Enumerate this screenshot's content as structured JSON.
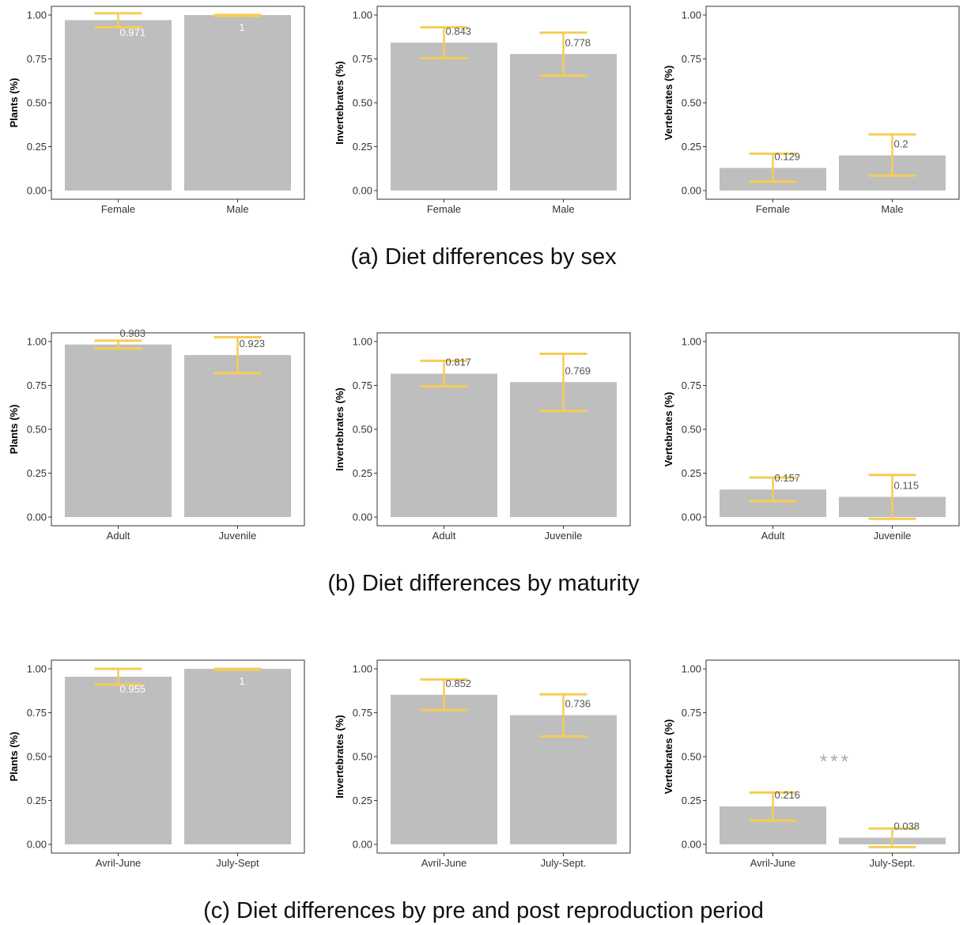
{
  "colors": {
    "bar": "#bebebe",
    "error_bar": "#f5cd55",
    "panel_border": "#333333",
    "label_dark": "#555555",
    "label_light": "#ffffff",
    "significance": "#aaaaaa"
  },
  "rows": [
    {
      "caption": "(a) Diet differences by sex",
      "charts": [
        {
          "ylabel": "Plants (%)",
          "categories": [
            "Female",
            "Male"
          ],
          "values": [
            0.971,
            1
          ],
          "labels": [
            "0.971",
            "1"
          ],
          "err_lo": [
            0.93,
            0.995
          ],
          "err_hi": [
            1.01,
            1.0
          ],
          "label_light": true
        },
        {
          "ylabel": "Invertebrates (%)",
          "categories": [
            "Female",
            "Male"
          ],
          "values": [
            0.843,
            0.778
          ],
          "labels": [
            "0.843",
            "0.778"
          ],
          "err_lo": [
            0.755,
            0.655
          ],
          "err_hi": [
            0.93,
            0.9
          ],
          "label_light": false
        },
        {
          "ylabel": "Vertebrates (%)",
          "categories": [
            "Female",
            "Male"
          ],
          "values": [
            0.129,
            0.2
          ],
          "labels": [
            "0.129",
            "0.2"
          ],
          "err_lo": [
            0.05,
            0.085
          ],
          "err_hi": [
            0.21,
            0.32
          ],
          "label_light": false
        }
      ]
    },
    {
      "caption": "(b) Diet differences by maturity",
      "charts": [
        {
          "ylabel": "Plants (%)",
          "categories": [
            "Adult",
            "Juvenile"
          ],
          "values": [
            0.983,
            0.923
          ],
          "labels": [
            "0.983",
            "0.923"
          ],
          "err_lo": [
            0.96,
            0.82
          ],
          "err_hi": [
            1.005,
            1.025
          ],
          "label_light": false
        },
        {
          "ylabel": "Invertebrates (%)",
          "categories": [
            "Adult",
            "Juvenile"
          ],
          "values": [
            0.817,
            0.769
          ],
          "labels": [
            "0.817",
            "0.769"
          ],
          "err_lo": [
            0.745,
            0.605
          ],
          "err_hi": [
            0.89,
            0.93
          ],
          "label_light": false
        },
        {
          "ylabel": "Vertebrates (%)",
          "categories": [
            "Adult",
            "Juvenile"
          ],
          "values": [
            0.157,
            0.115
          ],
          "labels": [
            "0.157",
            "0.115"
          ],
          "err_lo": [
            0.09,
            -0.01
          ],
          "err_hi": [
            0.225,
            0.24
          ],
          "label_light": false
        }
      ]
    },
    {
      "caption": "(c) Diet differences by pre and post reproduction period",
      "charts": [
        {
          "ylabel": "Plants (%)",
          "categories": [
            "Avril-June",
            "July-Sept"
          ],
          "values": [
            0.955,
            1
          ],
          "labels": [
            "0.955",
            "1"
          ],
          "err_lo": [
            0.91,
            0.995
          ],
          "err_hi": [
            1.0,
            1.0
          ],
          "label_light": true
        },
        {
          "ylabel": "Invertebrates (%)",
          "categories": [
            "Avril-June",
            "July-Sept."
          ],
          "values": [
            0.852,
            0.736
          ],
          "labels": [
            "0.852",
            "0.736"
          ],
          "err_lo": [
            0.765,
            0.615
          ],
          "err_hi": [
            0.94,
            0.855
          ],
          "label_light": false
        },
        {
          "ylabel": "Vertebrates (%)",
          "categories": [
            "Avril-June",
            "July-Sept."
          ],
          "values": [
            0.216,
            0.038
          ],
          "labels": [
            "0.216",
            "0.038"
          ],
          "err_lo": [
            0.135,
            -0.015
          ],
          "err_hi": [
            0.295,
            0.09
          ],
          "label_light": false,
          "annotation": "***"
        }
      ]
    }
  ],
  "chart_data": [
    {
      "type": "bar",
      "title": "(a) Diet differences by sex",
      "ylabel": "Plants (%)",
      "categories": [
        "Female",
        "Male"
      ],
      "values": [
        0.971,
        1
      ],
      "ylim": [
        0,
        1
      ],
      "yticks": [
        "0.00",
        "0.25",
        "0.50",
        "0.75",
        "1.00"
      ],
      "grid": false
    },
    {
      "type": "bar",
      "title": "(a) Diet differences by sex",
      "ylabel": "Invertebrates (%)",
      "categories": [
        "Female",
        "Male"
      ],
      "values": [
        0.843,
        0.778
      ],
      "ylim": [
        0,
        1
      ],
      "yticks": [
        "0.00",
        "0.25",
        "0.50",
        "0.75",
        "1.00"
      ],
      "grid": false
    },
    {
      "type": "bar",
      "title": "(a) Diet differences by sex",
      "ylabel": "Vertebrates (%)",
      "categories": [
        "Female",
        "Male"
      ],
      "values": [
        0.129,
        0.2
      ],
      "ylim": [
        0,
        1
      ],
      "yticks": [
        "0.00",
        "0.25",
        "0.50",
        "0.75",
        "1.00"
      ],
      "grid": false
    },
    {
      "type": "bar",
      "title": "(b) Diet differences by maturity",
      "ylabel": "Plants (%)",
      "categories": [
        "Adult",
        "Juvenile"
      ],
      "values": [
        0.983,
        0.923
      ],
      "ylim": [
        0,
        1
      ],
      "yticks": [
        "0.00",
        "0.25",
        "0.50",
        "0.75",
        "1.00"
      ],
      "grid": false
    },
    {
      "type": "bar",
      "title": "(b) Diet differences by maturity",
      "ylabel": "Invertebrates (%)",
      "categories": [
        "Adult",
        "Juvenile"
      ],
      "values": [
        0.817,
        0.769
      ],
      "ylim": [
        0,
        1
      ],
      "yticks": [
        "0.00",
        "0.25",
        "0.50",
        "0.75",
        "1.00"
      ],
      "grid": false
    },
    {
      "type": "bar",
      "title": "(b) Diet differences by maturity",
      "ylabel": "Vertebrates (%)",
      "categories": [
        "Adult",
        "Juvenile"
      ],
      "values": [
        0.157,
        0.115
      ],
      "ylim": [
        0,
        1
      ],
      "yticks": [
        "0.00",
        "0.25",
        "0.50",
        "0.75",
        "1.00"
      ],
      "grid": false
    },
    {
      "type": "bar",
      "title": "(c) Diet differences by pre and post reproduction period",
      "ylabel": "Plants (%)",
      "categories": [
        "Avril-June",
        "July-Sept"
      ],
      "values": [
        0.955,
        1
      ],
      "ylim": [
        0,
        1
      ],
      "yticks": [
        "0.00",
        "0.25",
        "0.50",
        "0.75",
        "1.00"
      ],
      "grid": false
    },
    {
      "type": "bar",
      "title": "(c) Diet differences by pre and post reproduction period",
      "ylabel": "Invertebrates (%)",
      "categories": [
        "Avril-June",
        "July-Sept."
      ],
      "values": [
        0.852,
        0.736
      ],
      "ylim": [
        0,
        1
      ],
      "yticks": [
        "0.00",
        "0.25",
        "0.50",
        "0.75",
        "1.00"
      ],
      "grid": false
    },
    {
      "type": "bar",
      "title": "(c) Diet differences by pre and post reproduction period",
      "ylabel": "Vertebrates (%)",
      "categories": [
        "Avril-June",
        "July-Sept."
      ],
      "values": [
        0.216,
        0.038
      ],
      "ylim": [
        0,
        1
      ],
      "yticks": [
        "0.00",
        "0.25",
        "0.50",
        "0.75",
        "1.00"
      ],
      "grid": false,
      "annotations": [
        "***"
      ]
    }
  ]
}
